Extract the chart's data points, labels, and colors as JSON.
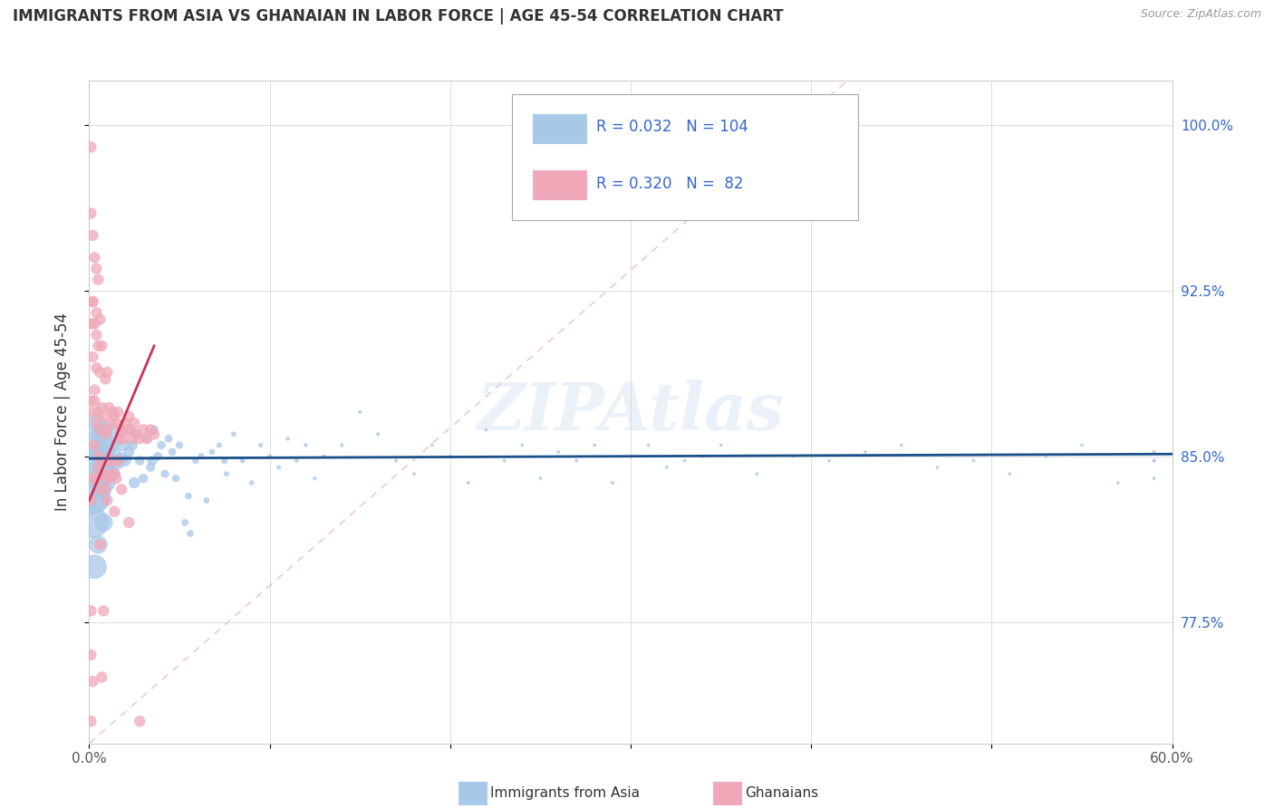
{
  "title": "IMMIGRANTS FROM ASIA VS GHANAIAN IN LABOR FORCE | AGE 45-54 CORRELATION CHART",
  "source_text": "Source: ZipAtlas.com",
  "ylabel": "In Labor Force | Age 45-54",
  "xlim": [
    0.0,
    0.6
  ],
  "ylim": [
    0.72,
    1.02
  ],
  "ytick_positions": [
    0.775,
    0.85,
    0.925,
    1.0
  ],
  "yticklabels": [
    "77.5%",
    "85.0%",
    "92.5%",
    "100.0%"
  ],
  "color_asia": "#a8c8e8",
  "color_ghana": "#f0a8b8",
  "color_asia_line": "#1a4f8a",
  "color_ghana_line": "#cc3355",
  "color_diag": "#e0b0b8",
  "watermark": "ZIPAtlas",
  "asia_R": 0.032,
  "asia_N": 104,
  "ghana_R": 0.32,
  "ghana_N": 82,
  "asia_scatter": {
    "x": [
      0.001,
      0.002,
      0.002,
      0.003,
      0.003,
      0.004,
      0.004,
      0.005,
      0.005,
      0.006,
      0.006,
      0.007,
      0.007,
      0.008,
      0.008,
      0.009,
      0.009,
      0.01,
      0.01,
      0.011,
      0.012,
      0.013,
      0.014,
      0.015,
      0.016,
      0.017,
      0.018,
      0.019,
      0.02,
      0.022,
      0.024,
      0.026,
      0.028,
      0.03,
      0.032,
      0.034,
      0.036,
      0.038,
      0.04,
      0.042,
      0.044,
      0.046,
      0.048,
      0.05,
      0.053,
      0.056,
      0.059,
      0.062,
      0.065,
      0.068,
      0.072,
      0.076,
      0.08,
      0.085,
      0.09,
      0.095,
      0.1,
      0.105,
      0.11,
      0.115,
      0.12,
      0.125,
      0.13,
      0.14,
      0.15,
      0.16,
      0.17,
      0.18,
      0.19,
      0.2,
      0.21,
      0.22,
      0.23,
      0.24,
      0.25,
      0.26,
      0.27,
      0.28,
      0.29,
      0.3,
      0.31,
      0.32,
      0.33,
      0.34,
      0.35,
      0.37,
      0.39,
      0.41,
      0.43,
      0.45,
      0.47,
      0.49,
      0.51,
      0.53,
      0.55,
      0.57,
      0.59,
      0.59,
      0.59,
      0.59,
      0.025,
      0.035,
      0.055,
      0.075
    ],
    "y": [
      0.832,
      0.82,
      0.855,
      0.8,
      0.84,
      0.85,
      0.865,
      0.83,
      0.81,
      0.845,
      0.86,
      0.835,
      0.85,
      0.82,
      0.858,
      0.845,
      0.862,
      0.838,
      0.852,
      0.848,
      0.855,
      0.842,
      0.851,
      0.858,
      0.847,
      0.862,
      0.849,
      0.855,
      0.848,
      0.852,
      0.855,
      0.86,
      0.848,
      0.84,
      0.858,
      0.845,
      0.862,
      0.85,
      0.855,
      0.842,
      0.858,
      0.852,
      0.84,
      0.855,
      0.82,
      0.815,
      0.848,
      0.85,
      0.83,
      0.852,
      0.855,
      0.842,
      0.86,
      0.848,
      0.838,
      0.855,
      0.85,
      0.845,
      0.858,
      0.848,
      0.855,
      0.84,
      0.85,
      0.855,
      0.87,
      0.86,
      0.848,
      0.842,
      0.855,
      0.85,
      0.838,
      0.862,
      0.848,
      0.855,
      0.84,
      0.852,
      0.848,
      0.855,
      0.838,
      0.85,
      0.855,
      0.845,
      0.848,
      0.85,
      0.855,
      0.842,
      0.85,
      0.848,
      0.852,
      0.855,
      0.845,
      0.848,
      0.842,
      0.85,
      0.855,
      0.838,
      0.84,
      0.852,
      0.848,
      0.848,
      0.838,
      0.848,
      0.832,
      0.848
    ],
    "size": [
      900,
      600,
      450,
      350,
      280,
      300,
      220,
      280,
      200,
      250,
      200,
      220,
      180,
      200,
      170,
      180,
      160,
      170,
      150,
      160,
      140,
      130,
      120,
      110,
      100,
      90,
      85,
      80,
      75,
      65,
      60,
      55,
      50,
      48,
      46,
      44,
      42,
      40,
      38,
      36,
      34,
      32,
      30,
      28,
      26,
      24,
      22,
      20,
      18,
      17,
      15,
      14,
      13,
      12,
      11,
      10,
      9,
      9,
      8,
      8,
      7,
      7,
      7,
      6,
      6,
      6,
      6,
      5,
      5,
      5,
      5,
      5,
      5,
      5,
      5,
      5,
      5,
      5,
      5,
      5,
      5,
      5,
      5,
      5,
      5,
      5,
      5,
      5,
      5,
      5,
      5,
      5,
      5,
      5,
      5,
      5,
      5,
      5,
      5,
      5,
      70,
      55,
      25,
      20
    ]
  },
  "ghana_scatter": {
    "x": [
      0.001,
      0.001,
      0.001,
      0.001,
      0.002,
      0.002,
      0.002,
      0.002,
      0.003,
      0.003,
      0.003,
      0.004,
      0.004,
      0.004,
      0.004,
      0.005,
      0.005,
      0.005,
      0.006,
      0.006,
      0.006,
      0.006,
      0.007,
      0.007,
      0.007,
      0.008,
      0.008,
      0.009,
      0.009,
      0.009,
      0.01,
      0.01,
      0.01,
      0.011,
      0.011,
      0.012,
      0.012,
      0.013,
      0.013,
      0.014,
      0.014,
      0.015,
      0.015,
      0.016,
      0.016,
      0.017,
      0.018,
      0.019,
      0.02,
      0.021,
      0.022,
      0.023,
      0.024,
      0.025,
      0.026,
      0.028,
      0.03,
      0.032,
      0.034,
      0.036,
      0.001,
      0.001,
      0.002,
      0.003,
      0.004,
      0.005,
      0.003,
      0.002,
      0.004,
      0.005,
      0.001,
      0.001,
      0.002,
      0.007,
      0.008,
      0.006,
      0.01,
      0.011,
      0.014,
      0.018,
      0.022,
      0.028
    ],
    "y": [
      0.73,
      0.83,
      0.875,
      0.91,
      0.84,
      0.87,
      0.895,
      0.92,
      0.855,
      0.88,
      0.91,
      0.84,
      0.865,
      0.89,
      0.915,
      0.845,
      0.87,
      0.9,
      0.835,
      0.862,
      0.888,
      0.912,
      0.848,
      0.872,
      0.9,
      0.842,
      0.868,
      0.835,
      0.86,
      0.885,
      0.84,
      0.862,
      0.888,
      0.848,
      0.872,
      0.842,
      0.865,
      0.848,
      0.87,
      0.842,
      0.868,
      0.84,
      0.865,
      0.848,
      0.87,
      0.858,
      0.862,
      0.858,
      0.865,
      0.862,
      0.868,
      0.862,
      0.858,
      0.865,
      0.86,
      0.858,
      0.862,
      0.858,
      0.862,
      0.86,
      0.96,
      0.99,
      0.95,
      0.94,
      0.935,
      0.93,
      0.875,
      0.92,
      0.905,
      0.85,
      0.78,
      0.76,
      0.748,
      0.75,
      0.78,
      0.81,
      0.83,
      0.84,
      0.825,
      0.835,
      0.82,
      0.73
    ],
    "size": [
      70,
      70,
      70,
      70,
      70,
      70,
      70,
      70,
      70,
      70,
      70,
      70,
      70,
      70,
      70,
      70,
      70,
      70,
      70,
      70,
      70,
      70,
      70,
      70,
      70,
      70,
      70,
      70,
      70,
      70,
      70,
      70,
      70,
      70,
      70,
      70,
      70,
      70,
      70,
      70,
      70,
      70,
      70,
      70,
      70,
      70,
      70,
      70,
      70,
      70,
      70,
      70,
      70,
      70,
      70,
      70,
      70,
      70,
      70,
      70,
      70,
      70,
      70,
      70,
      70,
      70,
      70,
      70,
      70,
      70,
      70,
      70,
      70,
      70,
      70,
      70,
      70,
      70,
      70,
      70,
      70,
      70
    ]
  }
}
